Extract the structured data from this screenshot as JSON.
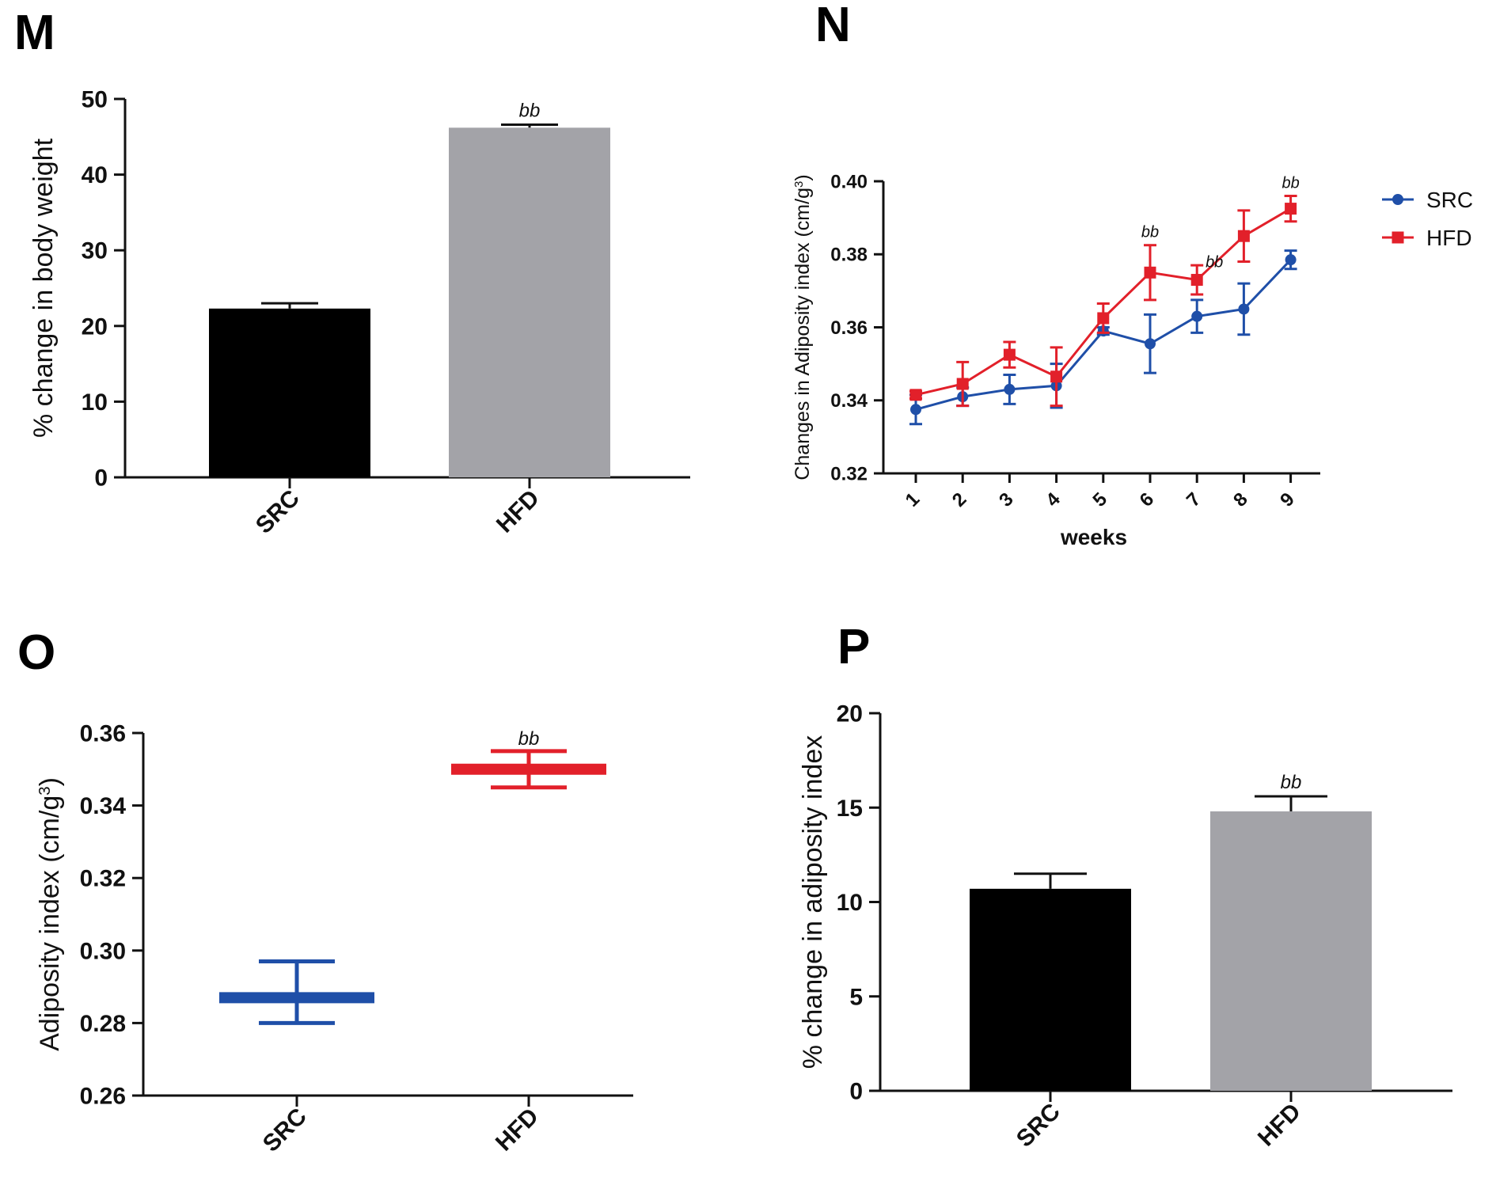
{
  "panels": [
    "M",
    "N",
    "O",
    "P"
  ],
  "chart_data": [
    {
      "panel": "M",
      "type": "bar",
      "categories": [
        "SRC",
        "HFD"
      ],
      "values": [
        22.3,
        46.2
      ],
      "errors": [
        0.7,
        0.4
      ],
      "annotations": [
        "",
        "bb"
      ],
      "colors": [
        "#000000",
        "#a3a3a8"
      ],
      "xlabel": "",
      "ylabel": "% change in body weight",
      "ylim": [
        0,
        50
      ],
      "yticks": [
        0,
        10,
        20,
        30,
        40,
        50
      ],
      "ytick_labels": [
        "0",
        "10",
        "20",
        "30",
        "40",
        "50"
      ]
    },
    {
      "panel": "N",
      "type": "line",
      "x": [
        1,
        2,
        3,
        4,
        5,
        6,
        7,
        8,
        9
      ],
      "x_labels": [
        "1",
        "2",
        "3",
        "4",
        "5",
        "6",
        "7",
        "8",
        "9"
      ],
      "series": [
        {
          "name": "SRC",
          "color": "#1f4fa8",
          "marker": "circle",
          "values": [
            0.3375,
            0.341,
            0.343,
            0.344,
            0.359,
            0.3555,
            0.363,
            0.365,
            0.3785
          ],
          "errors": [
            0.004,
            0.0025,
            0.004,
            0.006,
            0.001,
            0.008,
            0.0045,
            0.007,
            0.0025
          ]
        },
        {
          "name": "HFD",
          "color": "#e2202a",
          "marker": "square",
          "values": [
            0.3415,
            0.3445,
            0.3525,
            0.3465,
            0.3625,
            0.375,
            0.373,
            0.385,
            0.3925
          ],
          "errors": [
            0.001,
            0.006,
            0.0035,
            0.008,
            0.004,
            0.0075,
            0.004,
            0.007,
            0.0035
          ]
        }
      ],
      "annotations": [
        {
          "x": 6,
          "text": "bb"
        },
        {
          "x": 7,
          "text": "bb"
        },
        {
          "x": 9,
          "text": "bb"
        }
      ],
      "xlabel": "weeks",
      "ylabel": "Changes in Adiposity index (cm/g",
      "ylabel_sup": "3",
      "ylabel_end": ")",
      "ylim": [
        0.32,
        0.4
      ],
      "yticks": [
        0.32,
        0.34,
        0.36,
        0.38,
        0.4
      ],
      "ytick_labels": [
        "0.32",
        "0.34",
        "0.36",
        "0.38",
        "0.40"
      ],
      "legend": "right"
    },
    {
      "panel": "O",
      "type": "scatter",
      "categories": [
        "SRC",
        "HFD"
      ],
      "values": [
        0.287,
        0.35
      ],
      "error_high": [
        0.297,
        0.355
      ],
      "error_low": [
        0.28,
        0.345
      ],
      "annotations": [
        "",
        "bb"
      ],
      "colors": [
        "#1f4fa8",
        "#e2202a"
      ],
      "xlabel": "",
      "ylabel": "Adiposity index (cm/g",
      "ylabel_sup": "3",
      "ylabel_end": ")",
      "ylim": [
        0.26,
        0.36
      ],
      "yticks": [
        0.26,
        0.28,
        0.3,
        0.32,
        0.34,
        0.36
      ],
      "ytick_labels": [
        "0.26",
        "0.28",
        "0.30",
        "0.32",
        "0.34",
        "0.36"
      ]
    },
    {
      "panel": "P",
      "type": "bar",
      "categories": [
        "SRC",
        "HFD"
      ],
      "values": [
        10.7,
        14.8
      ],
      "errors": [
        0.8,
        0.8
      ],
      "annotations": [
        "",
        "bb"
      ],
      "colors": [
        "#000000",
        "#a3a3a8"
      ],
      "xlabel": "",
      "ylabel": "% change in adiposity index",
      "ylim": [
        0,
        20
      ],
      "yticks": [
        0,
        5,
        10,
        15,
        20
      ],
      "ytick_labels": [
        "0",
        "5",
        "10",
        "15",
        "20"
      ]
    }
  ]
}
